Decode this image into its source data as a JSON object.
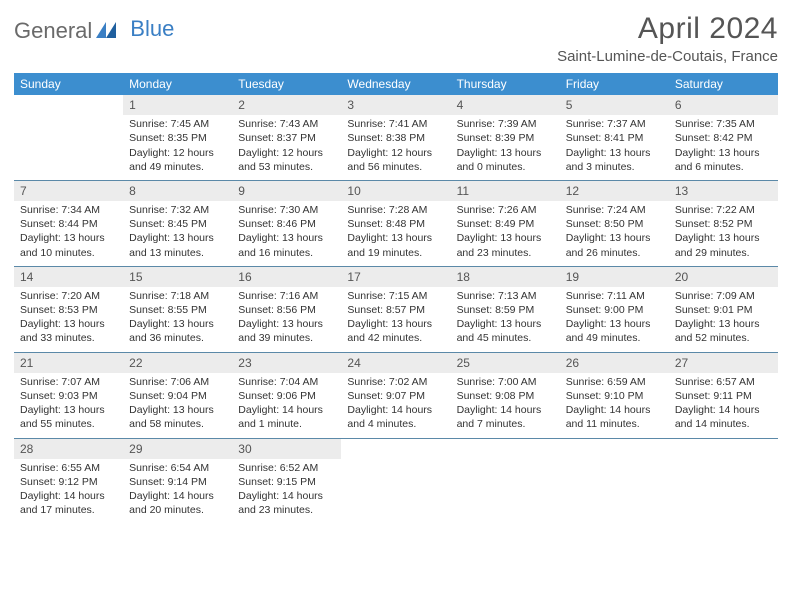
{
  "header": {
    "logo_part1": "General",
    "logo_part2": "Blue",
    "title": "April 2024",
    "subtitle": "Saint-Lumine-de-Coutais, France"
  },
  "colors": {
    "header_bg": "#3c8ecf",
    "header_text": "#ffffff",
    "daynum_bg": "#ececec",
    "border": "#5b89a8",
    "logo_blue": "#3a7fc4",
    "text": "#333333"
  },
  "weekdays": [
    "Sunday",
    "Monday",
    "Tuesday",
    "Wednesday",
    "Thursday",
    "Friday",
    "Saturday"
  ],
  "weeks": [
    [
      {
        "empty": true
      },
      {
        "num": "1",
        "sunrise": "Sunrise: 7:45 AM",
        "sunset": "Sunset: 8:35 PM",
        "daylight1": "Daylight: 12 hours",
        "daylight2": "and 49 minutes."
      },
      {
        "num": "2",
        "sunrise": "Sunrise: 7:43 AM",
        "sunset": "Sunset: 8:37 PM",
        "daylight1": "Daylight: 12 hours",
        "daylight2": "and 53 minutes."
      },
      {
        "num": "3",
        "sunrise": "Sunrise: 7:41 AM",
        "sunset": "Sunset: 8:38 PM",
        "daylight1": "Daylight: 12 hours",
        "daylight2": "and 56 minutes."
      },
      {
        "num": "4",
        "sunrise": "Sunrise: 7:39 AM",
        "sunset": "Sunset: 8:39 PM",
        "daylight1": "Daylight: 13 hours",
        "daylight2": "and 0 minutes."
      },
      {
        "num": "5",
        "sunrise": "Sunrise: 7:37 AM",
        "sunset": "Sunset: 8:41 PM",
        "daylight1": "Daylight: 13 hours",
        "daylight2": "and 3 minutes."
      },
      {
        "num": "6",
        "sunrise": "Sunrise: 7:35 AM",
        "sunset": "Sunset: 8:42 PM",
        "daylight1": "Daylight: 13 hours",
        "daylight2": "and 6 minutes."
      }
    ],
    [
      {
        "num": "7",
        "sunrise": "Sunrise: 7:34 AM",
        "sunset": "Sunset: 8:44 PM",
        "daylight1": "Daylight: 13 hours",
        "daylight2": "and 10 minutes."
      },
      {
        "num": "8",
        "sunrise": "Sunrise: 7:32 AM",
        "sunset": "Sunset: 8:45 PM",
        "daylight1": "Daylight: 13 hours",
        "daylight2": "and 13 minutes."
      },
      {
        "num": "9",
        "sunrise": "Sunrise: 7:30 AM",
        "sunset": "Sunset: 8:46 PM",
        "daylight1": "Daylight: 13 hours",
        "daylight2": "and 16 minutes."
      },
      {
        "num": "10",
        "sunrise": "Sunrise: 7:28 AM",
        "sunset": "Sunset: 8:48 PM",
        "daylight1": "Daylight: 13 hours",
        "daylight2": "and 19 minutes."
      },
      {
        "num": "11",
        "sunrise": "Sunrise: 7:26 AM",
        "sunset": "Sunset: 8:49 PM",
        "daylight1": "Daylight: 13 hours",
        "daylight2": "and 23 minutes."
      },
      {
        "num": "12",
        "sunrise": "Sunrise: 7:24 AM",
        "sunset": "Sunset: 8:50 PM",
        "daylight1": "Daylight: 13 hours",
        "daylight2": "and 26 minutes."
      },
      {
        "num": "13",
        "sunrise": "Sunrise: 7:22 AM",
        "sunset": "Sunset: 8:52 PM",
        "daylight1": "Daylight: 13 hours",
        "daylight2": "and 29 minutes."
      }
    ],
    [
      {
        "num": "14",
        "sunrise": "Sunrise: 7:20 AM",
        "sunset": "Sunset: 8:53 PM",
        "daylight1": "Daylight: 13 hours",
        "daylight2": "and 33 minutes."
      },
      {
        "num": "15",
        "sunrise": "Sunrise: 7:18 AM",
        "sunset": "Sunset: 8:55 PM",
        "daylight1": "Daylight: 13 hours",
        "daylight2": "and 36 minutes."
      },
      {
        "num": "16",
        "sunrise": "Sunrise: 7:16 AM",
        "sunset": "Sunset: 8:56 PM",
        "daylight1": "Daylight: 13 hours",
        "daylight2": "and 39 minutes."
      },
      {
        "num": "17",
        "sunrise": "Sunrise: 7:15 AM",
        "sunset": "Sunset: 8:57 PM",
        "daylight1": "Daylight: 13 hours",
        "daylight2": "and 42 minutes."
      },
      {
        "num": "18",
        "sunrise": "Sunrise: 7:13 AM",
        "sunset": "Sunset: 8:59 PM",
        "daylight1": "Daylight: 13 hours",
        "daylight2": "and 45 minutes."
      },
      {
        "num": "19",
        "sunrise": "Sunrise: 7:11 AM",
        "sunset": "Sunset: 9:00 PM",
        "daylight1": "Daylight: 13 hours",
        "daylight2": "and 49 minutes."
      },
      {
        "num": "20",
        "sunrise": "Sunrise: 7:09 AM",
        "sunset": "Sunset: 9:01 PM",
        "daylight1": "Daylight: 13 hours",
        "daylight2": "and 52 minutes."
      }
    ],
    [
      {
        "num": "21",
        "sunrise": "Sunrise: 7:07 AM",
        "sunset": "Sunset: 9:03 PM",
        "daylight1": "Daylight: 13 hours",
        "daylight2": "and 55 minutes."
      },
      {
        "num": "22",
        "sunrise": "Sunrise: 7:06 AM",
        "sunset": "Sunset: 9:04 PM",
        "daylight1": "Daylight: 13 hours",
        "daylight2": "and 58 minutes."
      },
      {
        "num": "23",
        "sunrise": "Sunrise: 7:04 AM",
        "sunset": "Sunset: 9:06 PM",
        "daylight1": "Daylight: 14 hours",
        "daylight2": "and 1 minute."
      },
      {
        "num": "24",
        "sunrise": "Sunrise: 7:02 AM",
        "sunset": "Sunset: 9:07 PM",
        "daylight1": "Daylight: 14 hours",
        "daylight2": "and 4 minutes."
      },
      {
        "num": "25",
        "sunrise": "Sunrise: 7:00 AM",
        "sunset": "Sunset: 9:08 PM",
        "daylight1": "Daylight: 14 hours",
        "daylight2": "and 7 minutes."
      },
      {
        "num": "26",
        "sunrise": "Sunrise: 6:59 AM",
        "sunset": "Sunset: 9:10 PM",
        "daylight1": "Daylight: 14 hours",
        "daylight2": "and 11 minutes."
      },
      {
        "num": "27",
        "sunrise": "Sunrise: 6:57 AM",
        "sunset": "Sunset: 9:11 PM",
        "daylight1": "Daylight: 14 hours",
        "daylight2": "and 14 minutes."
      }
    ],
    [
      {
        "num": "28",
        "sunrise": "Sunrise: 6:55 AM",
        "sunset": "Sunset: 9:12 PM",
        "daylight1": "Daylight: 14 hours",
        "daylight2": "and 17 minutes."
      },
      {
        "num": "29",
        "sunrise": "Sunrise: 6:54 AM",
        "sunset": "Sunset: 9:14 PM",
        "daylight1": "Daylight: 14 hours",
        "daylight2": "and 20 minutes."
      },
      {
        "num": "30",
        "sunrise": "Sunrise: 6:52 AM",
        "sunset": "Sunset: 9:15 PM",
        "daylight1": "Daylight: 14 hours",
        "daylight2": "and 23 minutes."
      },
      {
        "empty": true
      },
      {
        "empty": true
      },
      {
        "empty": true
      },
      {
        "empty": true
      }
    ]
  ]
}
